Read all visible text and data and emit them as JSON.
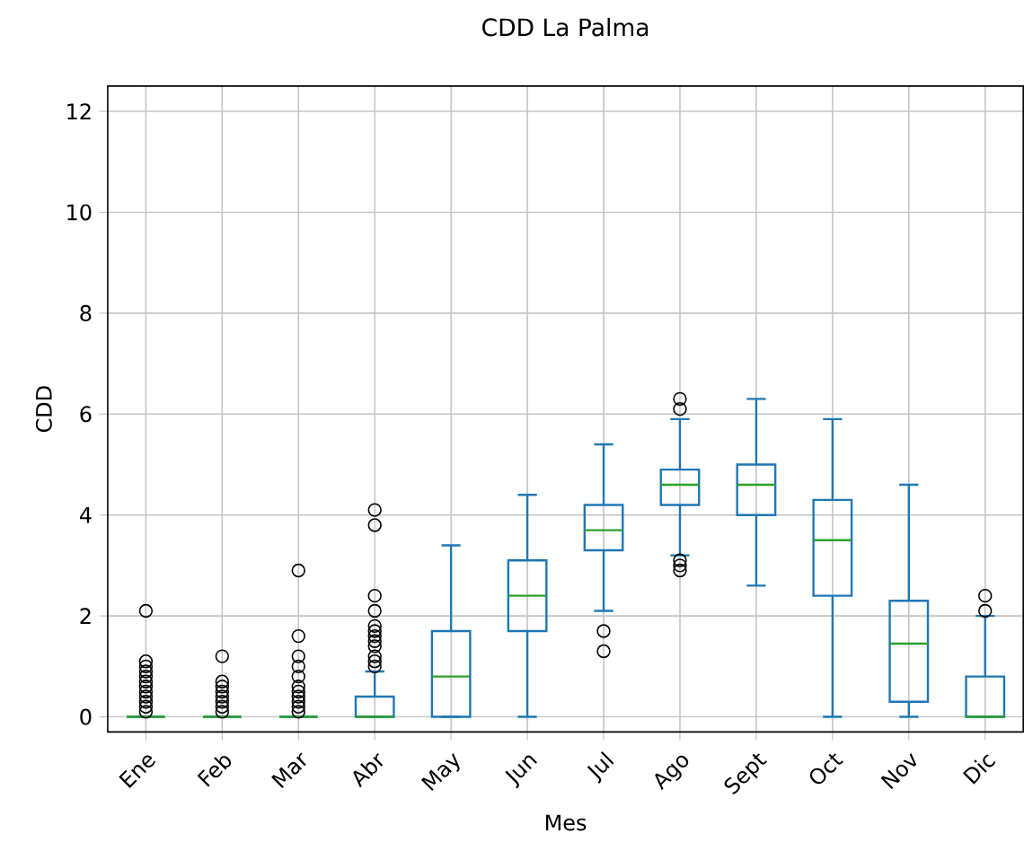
{
  "chart_data": {
    "type": "box",
    "title": "CDD La Palma",
    "xlabel": "Mes",
    "ylabel": "CDD",
    "categories": [
      "Ene",
      "Feb",
      "Mar",
      "Abr",
      "May",
      "Jun",
      "Jul",
      "Ago",
      "Sept",
      "Oct",
      "Nov",
      "Dic"
    ],
    "ylim": [
      -0.3,
      12.5
    ],
    "yticks": [
      0,
      2,
      4,
      6,
      8,
      10,
      12
    ],
    "grid": true,
    "series": [
      {
        "color": "#1f77b4",
        "boxes": [
          {
            "low": 0,
            "q1": 0,
            "median": 0,
            "q3": 0,
            "high": 0,
            "outliers": [
              0.1,
              0.2,
              0.3,
              0.4,
              0.5,
              0.6,
              0.7,
              0.8,
              0.9,
              1.0,
              1.1,
              2.1
            ]
          },
          {
            "low": 0,
            "q1": 0,
            "median": 0,
            "q3": 0,
            "high": 0,
            "outliers": [
              0.1,
              0.2,
              0.3,
              0.4,
              0.5,
              0.6,
              0.7,
              1.2
            ]
          },
          {
            "low": 0,
            "q1": 0,
            "median": 0,
            "q3": 0,
            "high": 0,
            "outliers": [
              0.1,
              0.2,
              0.3,
              0.4,
              0.5,
              0.6,
              0.8,
              1.0,
              1.2,
              1.6,
              2.9
            ]
          },
          {
            "low": 0,
            "q1": 0,
            "median": 0,
            "q3": 0.4,
            "high": 0.9,
            "outliers": [
              1.0,
              1.1,
              1.2,
              1.4,
              1.5,
              1.6,
              1.7,
              1.8,
              2.1,
              2.4,
              3.8,
              4.1
            ]
          },
          {
            "low": 0,
            "q1": 0,
            "median": 0.8,
            "q3": 1.7,
            "high": 3.4
          },
          {
            "low": 0,
            "q1": 1.7,
            "median": 2.4,
            "q3": 3.1,
            "high": 4.4
          },
          {
            "low": 2.1,
            "q1": 3.3,
            "median": 3.7,
            "q3": 4.2,
            "high": 5.4,
            "outliers": [
              1.3,
              1.7
            ]
          },
          {
            "low": 3.2,
            "q1": 4.2,
            "median": 4.6,
            "q3": 4.9,
            "high": 5.9,
            "outliers": [
              2.9,
              3.0,
              3.1,
              6.1,
              6.3
            ]
          },
          {
            "low": 2.6,
            "q1": 4.0,
            "median": 4.6,
            "q3": 5.0,
            "high": 6.3
          },
          {
            "low": 0,
            "q1": 2.4,
            "median": 3.5,
            "q3": 4.3,
            "high": 5.9
          },
          {
            "low": 0,
            "q1": 0.3,
            "median": 1.45,
            "q3": 2.3,
            "high": 4.6
          },
          {
            "low": 0,
            "q1": 0,
            "median": 0,
            "q3": 0.8,
            "high": 2.0,
            "outliers": [
              2.1,
              2.4
            ]
          }
        ]
      }
    ]
  }
}
